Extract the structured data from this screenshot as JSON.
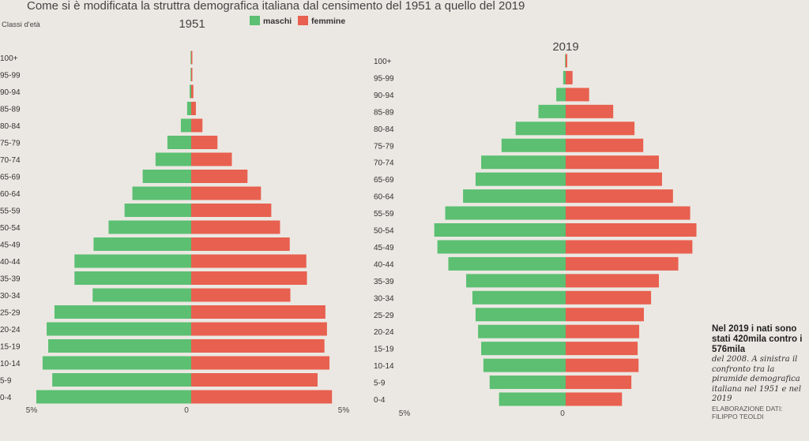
{
  "title": "Come si è modificata la struttra demografica italiana dal censimento del 1951 a quello del 2019",
  "note": {
    "headline": "Nel 2019 i nati sono stati 420mila contro i 576mila",
    "body": "del 2008. A sinistra il confronto tra la piramide demografica italiana nel 1951 e nel 2019",
    "source": "ELABORAZIONE DATI: FILIPPO TEOLDI"
  },
  "colors": {
    "maschi": "#5cbf72",
    "femmine": "#e8604f",
    "background": "#ebe8e3"
  },
  "chart_data": [
    {
      "type": "bar",
      "orientation": "horizontal-population-pyramid",
      "title": "1951",
      "ylabel": "Classi d'età",
      "legend": {
        "position": "top",
        "entries": [
          "maschi",
          "femmine"
        ]
      },
      "categories": [
        "100+",
        "95-99",
        "90-94",
        "85-89",
        "80-84",
        "75-79",
        "70-74",
        "65-69",
        "60-64",
        "55-59",
        "50-54",
        "45-49",
        "40-44",
        "35-39",
        "30-34",
        "25-29",
        "20-24",
        "15-19",
        "10-14",
        "5-9",
        "0-4"
      ],
      "series": [
        {
          "name": "maschi",
          "values": [
            0.02,
            0.02,
            0.05,
            0.13,
            0.33,
            0.76,
            1.14,
            1.55,
            1.88,
            2.13,
            2.64,
            3.12,
            3.73,
            3.73,
            3.15,
            4.37,
            4.62,
            4.57,
            4.75,
            4.44,
            4.95
          ]
        },
        {
          "name": "femmine",
          "values": [
            0.02,
            0.03,
            0.07,
            0.15,
            0.36,
            0.84,
            1.3,
            1.8,
            2.23,
            2.56,
            2.84,
            3.15,
            3.68,
            3.7,
            3.17,
            4.29,
            4.34,
            4.26,
            4.42,
            4.04,
            4.5
          ]
        }
      ],
      "xticks": [
        "5%",
        "0",
        "5%"
      ],
      "xlim": [
        -5,
        5
      ],
      "unit": "%"
    },
    {
      "type": "bar",
      "orientation": "horizontal-population-pyramid",
      "title": "2019",
      "categories": [
        "100+",
        "95-99",
        "90-94",
        "85-89",
        "80-84",
        "75-79",
        "70-74",
        "65-69",
        "60-64",
        "55-59",
        "50-54",
        "45-49",
        "40-44",
        "35-39",
        "30-34",
        "25-29",
        "20-24",
        "15-19",
        "10-14",
        "5-9",
        "0-4"
      ],
      "series": [
        {
          "name": "maschi",
          "values": [
            0.02,
            0.08,
            0.3,
            0.87,
            1.6,
            2.05,
            2.7,
            2.88,
            3.28,
            3.85,
            4.2,
            4.1,
            3.75,
            3.18,
            2.98,
            2.88,
            2.8,
            2.7,
            2.63,
            2.43,
            2.13
          ]
        },
        {
          "name": "femmine",
          "values": [
            0.05,
            0.22,
            0.75,
            1.52,
            2.2,
            2.48,
            2.98,
            3.08,
            3.43,
            3.98,
            4.18,
            4.05,
            3.6,
            2.98,
            2.73,
            2.5,
            2.35,
            2.3,
            2.33,
            2.1,
            1.8
          ]
        }
      ],
      "xticks": [
        "5%",
        "0"
      ],
      "xlim": [
        -5,
        5
      ],
      "unit": "%"
    }
  ]
}
